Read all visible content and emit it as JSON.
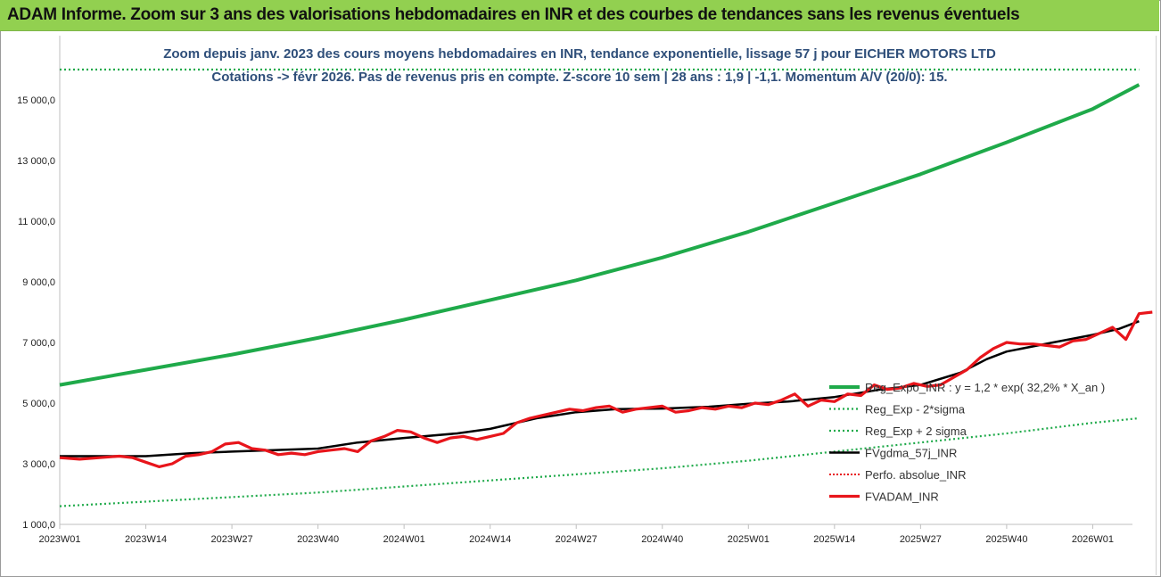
{
  "header": {
    "banner": "ADAM Informe. Zoom sur 3 ans des valorisations hebdomadaires en INR et des courbes de tendances sans les revenus éventuels"
  },
  "colors": {
    "banner_bg": "#92d050",
    "reg_expo": "#1faa4a",
    "sigma": "#1faa4a",
    "fvgdma": "#000000",
    "perfo": "#e8151b",
    "fvadam": "#e8151b",
    "title": "#2f4f7a"
  },
  "chart_data": {
    "type": "line",
    "title": "Zoom depuis janv. 2023 des cours moyens hebdomadaires en INR, tendance exponentielle, lissage 57 j pour EICHER MOTORS LTD",
    "subtitle": "Cotations -> févr 2026. Pas de revenus pris en compte. Z-score 10 sem | 28 ans : 1,9 | -1,1. Momentum A/V (20/0): 15.",
    "xlabel": "",
    "ylabel": "",
    "ylim": [
      1000,
      16000
    ],
    "yticks": [
      1000,
      3000,
      5000,
      7000,
      9000,
      11000,
      13000,
      15000
    ],
    "ytick_labels": [
      "1 000,0",
      "3 000,0",
      "5 000,0",
      "7 000,0",
      "9 000,0",
      "11 000,0",
      "13 000,0",
      "15 000,0"
    ],
    "x_range": [
      0,
      162
    ],
    "xtick_positions": [
      0,
      13,
      26,
      39,
      52,
      65,
      78,
      91,
      104,
      117,
      130,
      143,
      156
    ],
    "xtick_labels": [
      "2023W01",
      "2023W14",
      "2023W27",
      "2023W40",
      "2024W01",
      "2024W14",
      "2024W27",
      "2024W40",
      "2025W01",
      "2025W14",
      "2025W27",
      "2025W40",
      "2026W01"
    ],
    "grid": false,
    "legend_position": "right",
    "series": [
      {
        "name": "Reg_Expo_INR : y = 1,2 * exp( 32,2% *  X_an )",
        "style": "solid-thick",
        "points": [
          [
            0,
            5600
          ],
          [
            13,
            6100
          ],
          [
            26,
            6600
          ],
          [
            39,
            7150
          ],
          [
            52,
            7750
          ],
          [
            65,
            8400
          ],
          [
            78,
            9050
          ],
          [
            91,
            9800
          ],
          [
            104,
            10650
          ],
          [
            117,
            11600
          ],
          [
            130,
            12550
          ],
          [
            143,
            13600
          ],
          [
            156,
            14700
          ],
          [
            163,
            15500
          ]
        ]
      },
      {
        "name": "Reg_Exp - 2*sigma",
        "style": "dotted",
        "points": [
          [
            0,
            16000
          ],
          [
            163,
            16000
          ]
        ]
      },
      {
        "name": "Reg_Exp + 2 sigma",
        "style": "dotted",
        "points": [
          [
            0,
            1600
          ],
          [
            13,
            1750
          ],
          [
            26,
            1900
          ],
          [
            39,
            2050
          ],
          [
            52,
            2250
          ],
          [
            65,
            2450
          ],
          [
            78,
            2650
          ],
          [
            91,
            2850
          ],
          [
            104,
            3100
          ],
          [
            117,
            3400
          ],
          [
            130,
            3700
          ],
          [
            143,
            4000
          ],
          [
            156,
            4350
          ],
          [
            163,
            4500
          ]
        ]
      },
      {
        "name": "FVgdma_57j_INR",
        "style": "solid",
        "points": [
          [
            0,
            3250
          ],
          [
            13,
            3250
          ],
          [
            20,
            3350
          ],
          [
            26,
            3400
          ],
          [
            39,
            3500
          ],
          [
            45,
            3700
          ],
          [
            52,
            3850
          ],
          [
            60,
            4000
          ],
          [
            65,
            4150
          ],
          [
            72,
            4500
          ],
          [
            78,
            4700
          ],
          [
            84,
            4800
          ],
          [
            91,
            4820
          ],
          [
            98,
            4880
          ],
          [
            104,
            4980
          ],
          [
            110,
            5050
          ],
          [
            117,
            5200
          ],
          [
            124,
            5450
          ],
          [
            130,
            5600
          ],
          [
            136,
            6000
          ],
          [
            140,
            6450
          ],
          [
            143,
            6700
          ],
          [
            150,
            7000
          ],
          [
            156,
            7250
          ],
          [
            160,
            7450
          ],
          [
            163,
            7700
          ]
        ]
      },
      {
        "name": "Perfo. absolue_INR",
        "style": "dotted",
        "points": []
      },
      {
        "name": "FVADAM_INR",
        "style": "solid-thick",
        "points": [
          [
            0,
            3200
          ],
          [
            3,
            3150
          ],
          [
            6,
            3200
          ],
          [
            9,
            3250
          ],
          [
            11,
            3200
          ],
          [
            13,
            3050
          ],
          [
            15,
            2900
          ],
          [
            17,
            3000
          ],
          [
            19,
            3250
          ],
          [
            21,
            3300
          ],
          [
            23,
            3400
          ],
          [
            25,
            3650
          ],
          [
            27,
            3700
          ],
          [
            29,
            3500
          ],
          [
            31,
            3450
          ],
          [
            33,
            3300
          ],
          [
            35,
            3350
          ],
          [
            37,
            3300
          ],
          [
            39,
            3400
          ],
          [
            41,
            3450
          ],
          [
            43,
            3500
          ],
          [
            45,
            3400
          ],
          [
            47,
            3750
          ],
          [
            49,
            3900
          ],
          [
            51,
            4100
          ],
          [
            53,
            4050
          ],
          [
            55,
            3850
          ],
          [
            57,
            3700
          ],
          [
            59,
            3850
          ],
          [
            61,
            3900
          ],
          [
            63,
            3800
          ],
          [
            65,
            3900
          ],
          [
            67,
            4000
          ],
          [
            69,
            4350
          ],
          [
            71,
            4500
          ],
          [
            73,
            4600
          ],
          [
            75,
            4700
          ],
          [
            77,
            4800
          ],
          [
            79,
            4750
          ],
          [
            81,
            4850
          ],
          [
            83,
            4900
          ],
          [
            85,
            4700
          ],
          [
            87,
            4800
          ],
          [
            89,
            4850
          ],
          [
            91,
            4900
          ],
          [
            93,
            4700
          ],
          [
            95,
            4750
          ],
          [
            97,
            4850
          ],
          [
            99,
            4800
          ],
          [
            101,
            4900
          ],
          [
            103,
            4850
          ],
          [
            105,
            5000
          ],
          [
            107,
            4950
          ],
          [
            109,
            5100
          ],
          [
            111,
            5300
          ],
          [
            113,
            4900
          ],
          [
            115,
            5100
          ],
          [
            117,
            5050
          ],
          [
            119,
            5300
          ],
          [
            121,
            5250
          ],
          [
            123,
            5600
          ],
          [
            125,
            5450
          ],
          [
            127,
            5500
          ],
          [
            129,
            5650
          ],
          [
            131,
            5550
          ],
          [
            133,
            5600
          ],
          [
            135,
            5850
          ],
          [
            137,
            6100
          ],
          [
            139,
            6500
          ],
          [
            141,
            6800
          ],
          [
            143,
            7000
          ],
          [
            145,
            6950
          ],
          [
            147,
            6950
          ],
          [
            149,
            6900
          ],
          [
            151,
            6850
          ],
          [
            153,
            7050
          ],
          [
            155,
            7100
          ],
          [
            157,
            7300
          ],
          [
            159,
            7500
          ],
          [
            161,
            7100
          ],
          [
            163,
            7950
          ],
          [
            165,
            8000
          ]
        ]
      }
    ]
  }
}
